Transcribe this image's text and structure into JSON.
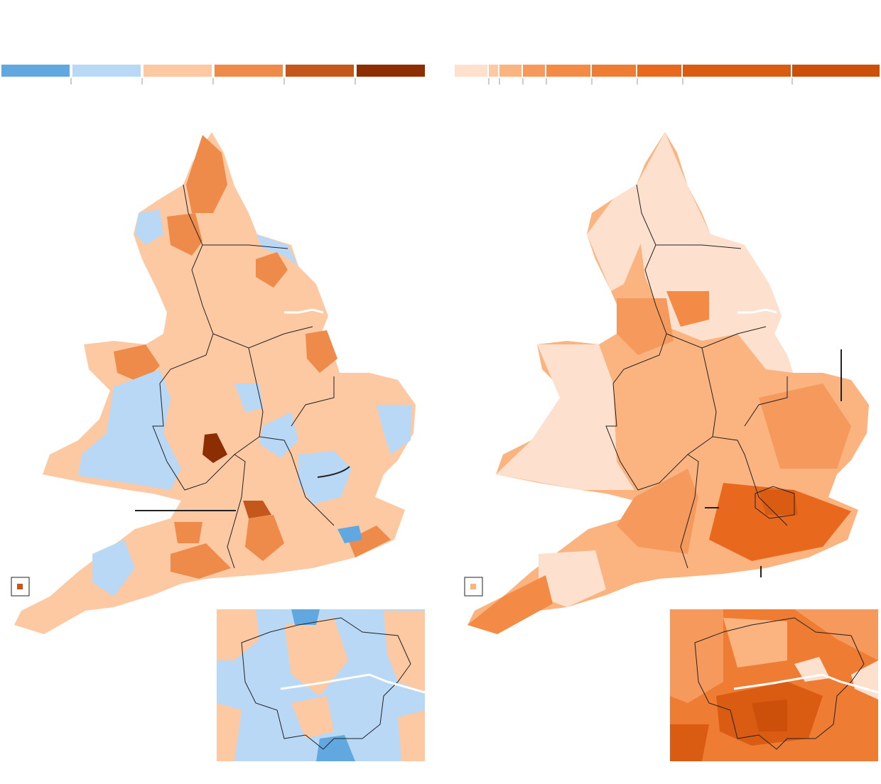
{
  "legends": [
    {
      "colors": [
        "#62a8e0",
        "#b8d8f6",
        "#fdc9a3",
        "#ef8b4a",
        "#c4571c",
        "#8c2d04"
      ]
    },
    {
      "colors": [
        "#fde0cd",
        "#fcc9a5",
        "#fbb37f",
        "#f59a5c",
        "#f38a45",
        "#ef7c33",
        "#e8691e",
        "#d95c12",
        "#cc4f0a"
      ]
    }
  ]
}
